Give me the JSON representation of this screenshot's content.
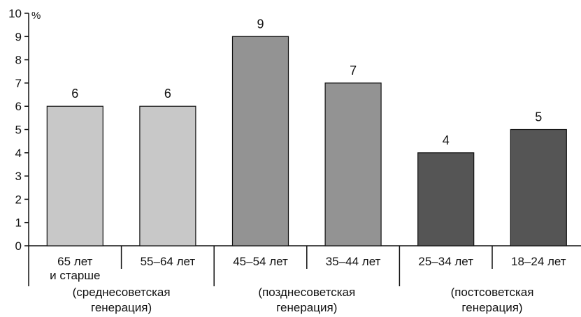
{
  "chart_data": {
    "type": "bar",
    "ylabel": "%",
    "ylim": [
      0,
      10
    ],
    "yticks": [
      "0",
      "1",
      "2",
      "3",
      "4",
      "5",
      "6",
      "7",
      "8",
      "9",
      "10"
    ],
    "grid": false,
    "categories": [
      [
        "65 лет",
        "и старше"
      ],
      [
        "55–64 лет"
      ],
      [
        "45–54 лет"
      ],
      [
        "35–44 лет"
      ],
      [
        "25–34 лет"
      ],
      [
        "18–24 лет"
      ]
    ],
    "values": [
      6,
      6,
      9,
      7,
      4,
      5
    ],
    "bar_colors": [
      "#c8c8c8",
      "#c8c8c8",
      "#939393",
      "#939393",
      "#555555",
      "#555555"
    ],
    "groups": [
      {
        "lines": [
          "(среднесоветская",
          "генерация)"
        ],
        "members": [
          0,
          1
        ]
      },
      {
        "lines": [
          "(позднесоветская",
          "генерация)"
        ],
        "members": [
          2,
          3
        ]
      },
      {
        "lines": [
          "(постсоветская",
          "генерация)"
        ],
        "members": [
          4,
          5
        ]
      }
    ]
  }
}
